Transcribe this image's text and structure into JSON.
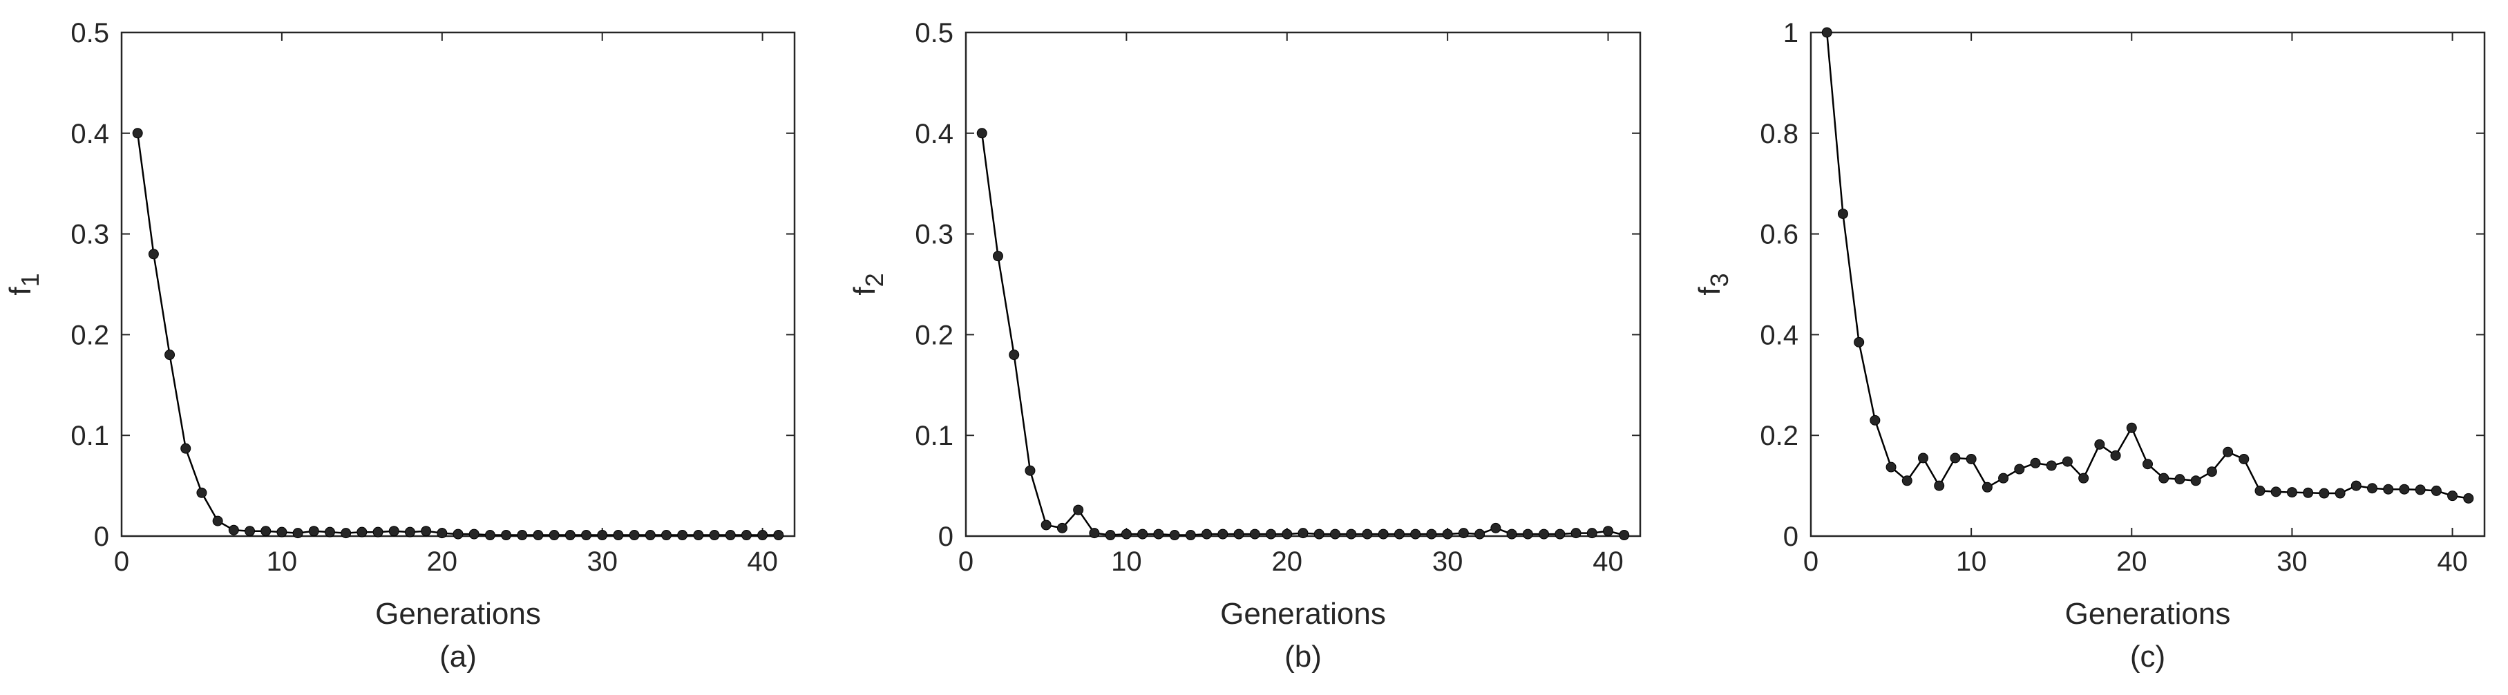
{
  "chart_data": [
    {
      "type": "line",
      "caption": "(a)",
      "xlabel": "Generations",
      "ylabel": "f",
      "ylabel_sub": "1",
      "xlim": [
        0,
        42
      ],
      "ylim": [
        0,
        0.5
      ],
      "xticks": [
        "0",
        "10",
        "20",
        "30",
        "40"
      ],
      "yticks": [
        "0",
        "0.1",
        "0.2",
        "0.3",
        "0.4",
        "0.5"
      ],
      "grid": false,
      "line_color": "#000000",
      "marker": "filled-circle",
      "x": [
        1,
        2,
        3,
        4,
        5,
        6,
        7,
        8,
        9,
        10,
        11,
        12,
        13,
        14,
        15,
        16,
        17,
        18,
        19,
        20,
        21,
        22,
        23,
        24,
        25,
        26,
        27,
        28,
        29,
        30,
        31,
        32,
        33,
        34,
        35,
        36,
        37,
        38,
        39,
        40,
        41
      ],
      "values": [
        0.4,
        0.28,
        0.18,
        0.087,
        0.043,
        0.015,
        0.006,
        0.005,
        0.005,
        0.004,
        0.003,
        0.005,
        0.004,
        0.003,
        0.004,
        0.004,
        0.005,
        0.004,
        0.005,
        0.003,
        0.002,
        0.002,
        0.001,
        0.001,
        0.001,
        0.001,
        0.001,
        0.001,
        0.001,
        0.001,
        0.001,
        0.001,
        0.001,
        0.001,
        0.001,
        0.001,
        0.001,
        0.001,
        0.001,
        0.001,
        0.001
      ]
    },
    {
      "type": "line",
      "caption": "(b)",
      "xlabel": "Generations",
      "ylabel": "f",
      "ylabel_sub": "2",
      "xlim": [
        0,
        42
      ],
      "ylim": [
        0,
        0.5
      ],
      "xticks": [
        "0",
        "10",
        "20",
        "30",
        "40"
      ],
      "yticks": [
        "0",
        "0.1",
        "0.2",
        "0.3",
        "0.4",
        "0.5"
      ],
      "grid": false,
      "line_color": "#000000",
      "marker": "filled-circle",
      "x": [
        1,
        2,
        3,
        4,
        5,
        6,
        7,
        8,
        9,
        10,
        11,
        12,
        13,
        14,
        15,
        16,
        17,
        18,
        19,
        20,
        21,
        22,
        23,
        24,
        25,
        26,
        27,
        28,
        29,
        30,
        31,
        32,
        33,
        34,
        35,
        36,
        37,
        38,
        39,
        40,
        41
      ],
      "values": [
        0.4,
        0.278,
        0.18,
        0.065,
        0.011,
        0.008,
        0.026,
        0.003,
        0.001,
        0.002,
        0.002,
        0.002,
        0.001,
        0.001,
        0.002,
        0.002,
        0.002,
        0.002,
        0.002,
        0.002,
        0.003,
        0.002,
        0.002,
        0.002,
        0.002,
        0.002,
        0.002,
        0.002,
        0.002,
        0.002,
        0.003,
        0.002,
        0.008,
        0.002,
        0.002,
        0.002,
        0.002,
        0.003,
        0.003,
        0.005,
        0.001
      ]
    },
    {
      "type": "line",
      "caption": "(c)",
      "xlabel": "Generations",
      "ylabel": "f",
      "ylabel_sub": "3",
      "xlim": [
        0,
        42
      ],
      "ylim": [
        0,
        1
      ],
      "xticks": [
        "0",
        "10",
        "20",
        "30",
        "40"
      ],
      "yticks": [
        "0",
        "0.2",
        "0.4",
        "0.6",
        "0.8",
        "1"
      ],
      "grid": false,
      "line_color": "#000000",
      "marker": "filled-circle",
      "x": [
        1,
        2,
        3,
        4,
        5,
        6,
        7,
        8,
        9,
        10,
        11,
        12,
        13,
        14,
        15,
        16,
        17,
        18,
        19,
        20,
        21,
        22,
        23,
        24,
        25,
        26,
        27,
        28,
        29,
        30,
        31,
        32,
        33,
        34,
        35,
        36,
        37,
        38,
        39,
        40,
        41
      ],
      "values": [
        1.0,
        0.64,
        0.385,
        0.23,
        0.137,
        0.11,
        0.155,
        0.1,
        0.155,
        0.153,
        0.097,
        0.115,
        0.133,
        0.145,
        0.14,
        0.148,
        0.115,
        0.182,
        0.16,
        0.215,
        0.143,
        0.115,
        0.113,
        0.11,
        0.128,
        0.167,
        0.153,
        0.09,
        0.088,
        0.087,
        0.086,
        0.085,
        0.085,
        0.1,
        0.095,
        0.093,
        0.093,
        0.092,
        0.09,
        0.08,
        0.075
      ]
    }
  ]
}
